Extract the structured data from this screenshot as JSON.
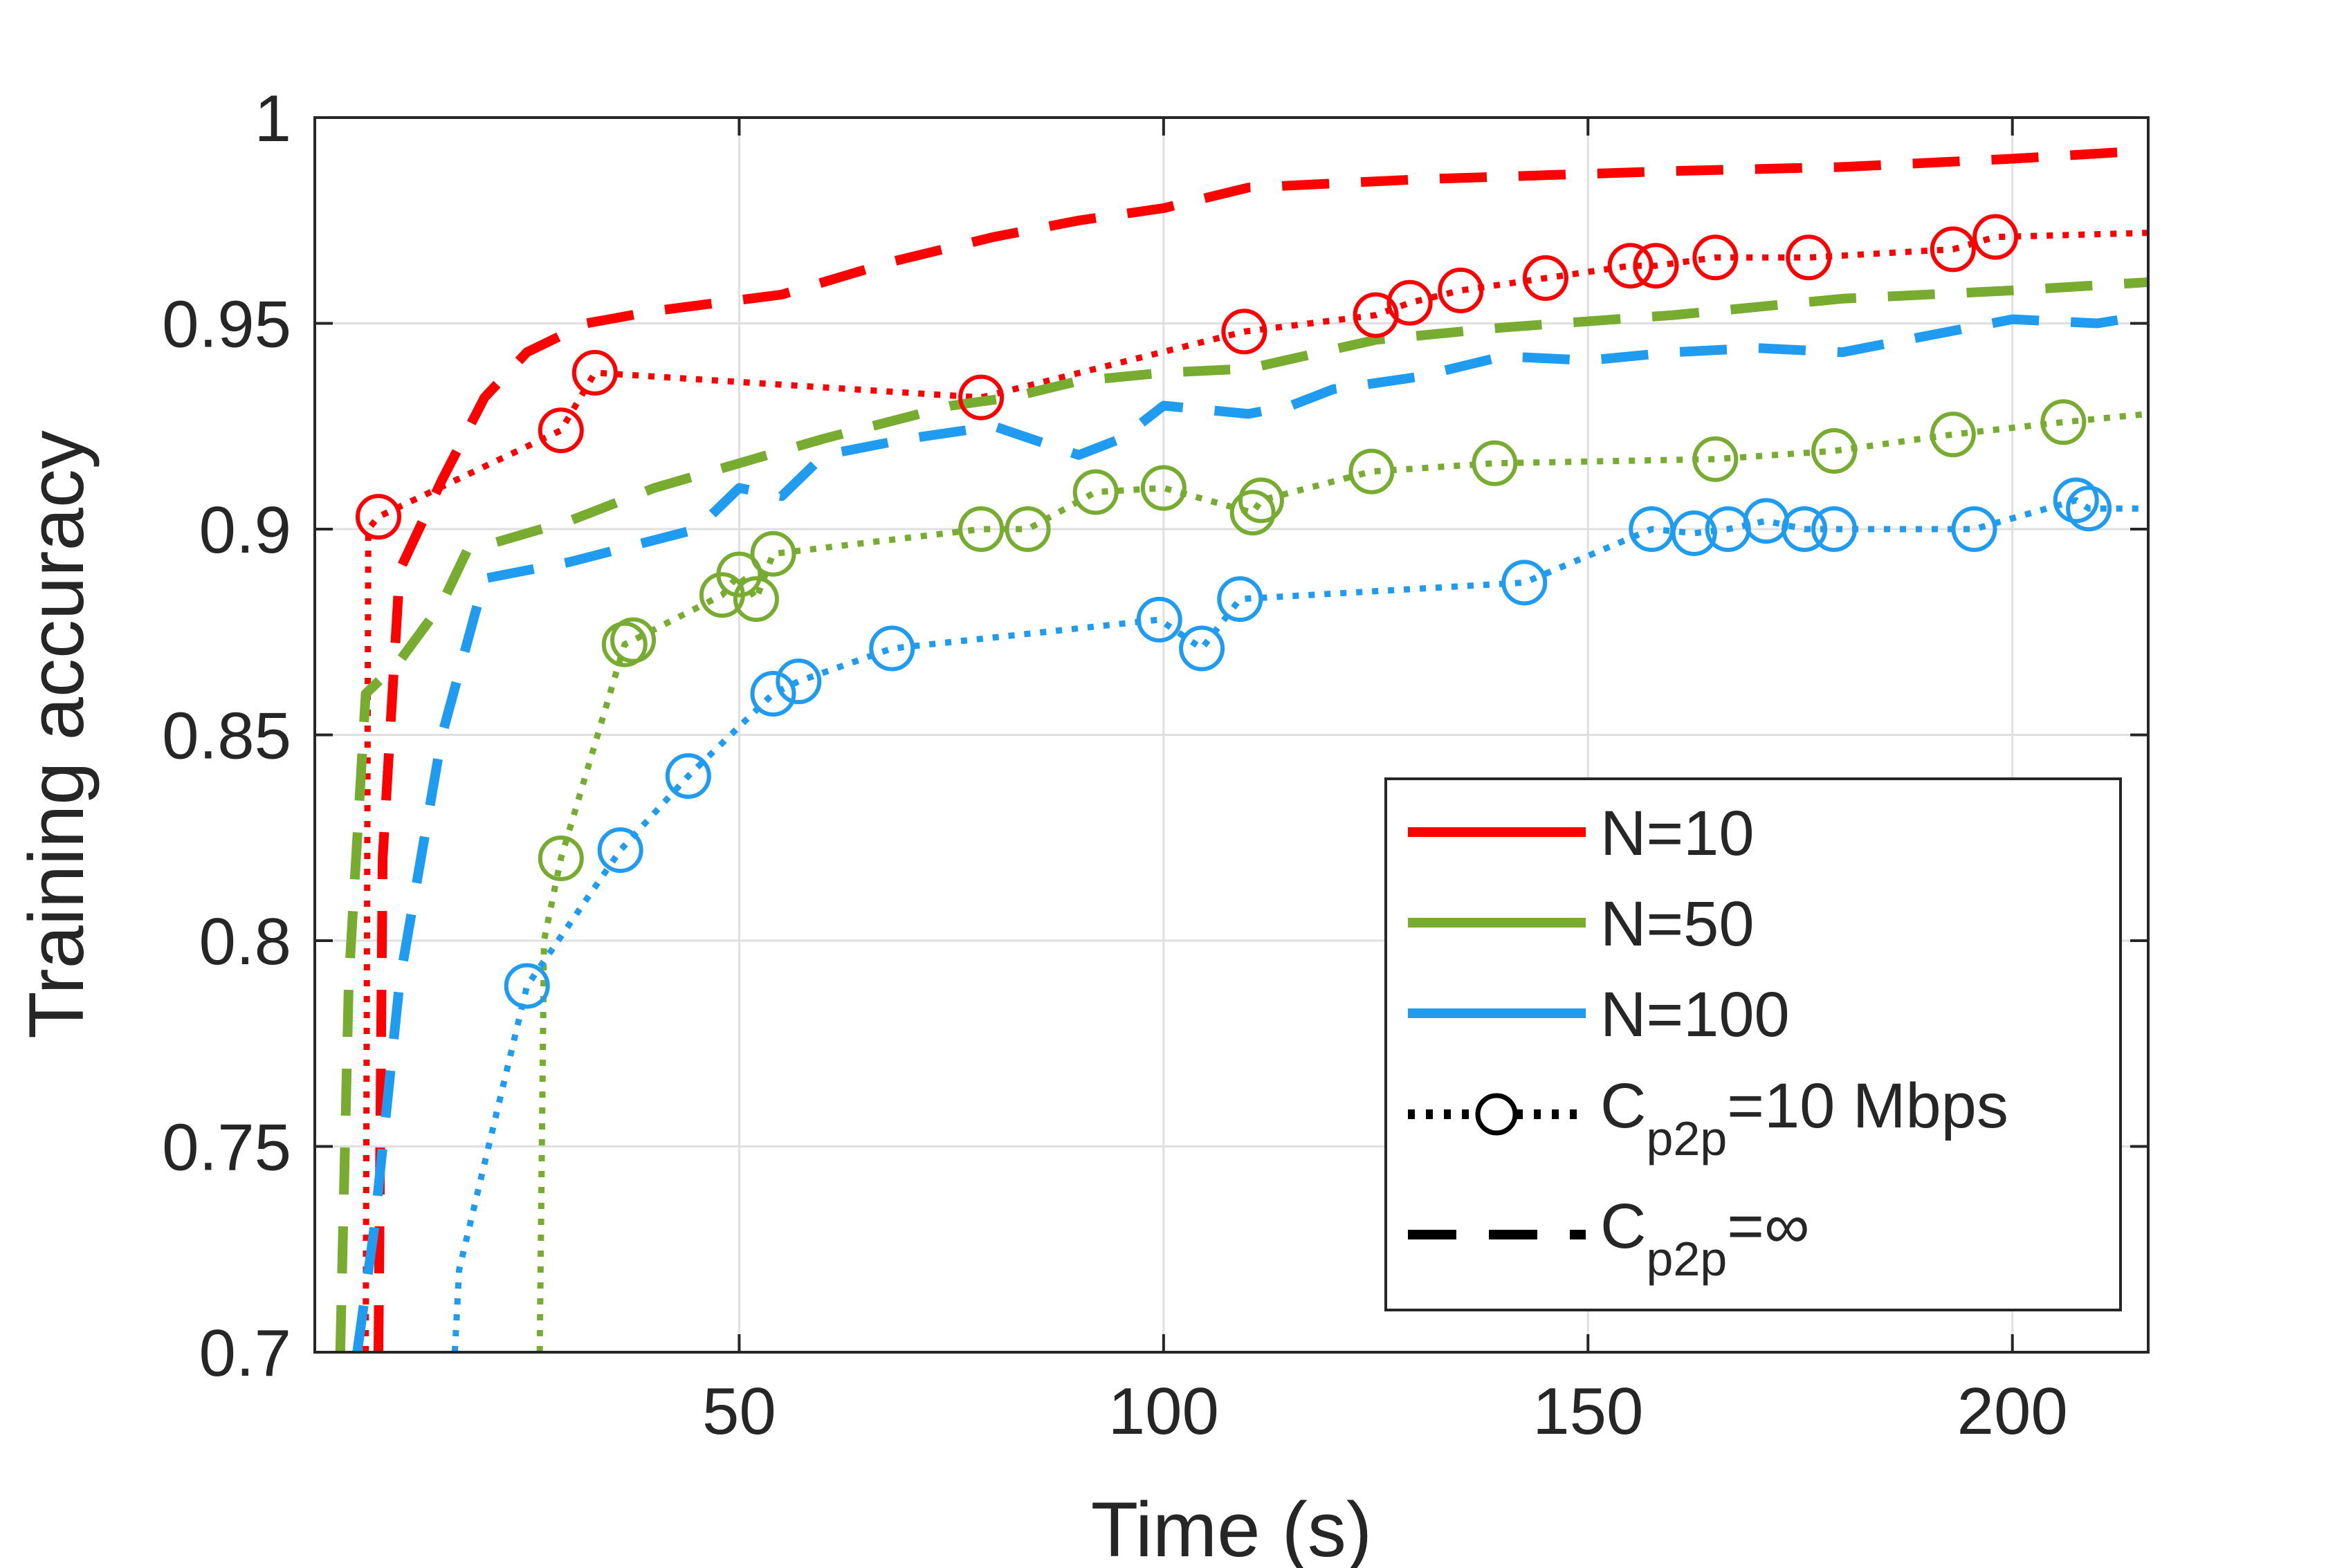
{
  "chart_data": {
    "type": "line",
    "title": "",
    "xlabel": "Time (s)",
    "ylabel": "Training accuracy",
    "xlim": [
      0,
      216
    ],
    "ylim": [
      0.7,
      1.0
    ],
    "xticks": [
      50,
      100,
      150,
      200
    ],
    "xtick_labels": [
      "50",
      "100",
      "150",
      "200"
    ],
    "yticks": [
      0.7,
      0.75,
      0.8,
      0.85,
      0.9,
      0.95,
      1.0
    ],
    "ytick_labels": [
      "0.7",
      "0.75",
      "0.8",
      "0.85",
      "0.9",
      "0.95",
      "1"
    ],
    "grid": true,
    "legend_position": "bottom-right",
    "legend": [
      {
        "label": "N=10",
        "kind": "color",
        "color": "#ff0000"
      },
      {
        "label": "N=50",
        "kind": "color",
        "color": "#77ac30"
      },
      {
        "label": "N=100",
        "kind": "color",
        "color": "#1f9bef"
      },
      {
        "label": "C",
        "sub": "p2p",
        "suffix": "=10 Mbps",
        "kind": "dotted-circle",
        "color": "#000000"
      },
      {
        "label": "C",
        "sub": "p2p",
        "suffix": "=∞",
        "kind": "dashed",
        "color": "#000000"
      }
    ],
    "series": [
      {
        "name": "N=10, Cp2p=∞",
        "color": "#ff0000",
        "style": "dashed",
        "markers": false,
        "x": [
          7.5,
          8,
          10,
          15,
          20,
          25,
          32,
          40,
          55,
          68,
          80,
          90,
          100,
          110,
          120,
          130,
          145,
          160,
          180,
          200,
          216
        ],
        "y": [
          0.7,
          0.82,
          0.89,
          0.912,
          0.932,
          0.943,
          0.95,
          0.953,
          0.957,
          0.965,
          0.971,
          0.975,
          0.978,
          0.983,
          0.984,
          0.985,
          0.986,
          0.987,
          0.988,
          0.99,
          0.992
        ]
      },
      {
        "name": "N=10, Cp2p=10 Mbps",
        "color": "#ff0000",
        "style": "dotted",
        "markers": true,
        "x": [
          6,
          6.3,
          7.5,
          29,
          33,
          78.5,
          109.5,
          125,
          129,
          135,
          145,
          155,
          158,
          165,
          176,
          193,
          198,
          216
        ],
        "y": [
          0.7,
          0.9,
          0.903,
          0.924,
          0.938,
          0.932,
          0.948,
          0.952,
          0.955,
          0.958,
          0.961,
          0.964,
          0.964,
          0.966,
          0.966,
          0.968,
          0.971,
          0.972
        ],
        "marker_x": [
          7.5,
          29,
          33,
          78.5,
          109.5,
          125,
          129,
          135,
          145,
          155,
          158,
          165,
          176,
          193,
          198
        ],
        "marker_y": [
          0.903,
          0.924,
          0.938,
          0.932,
          0.948,
          0.952,
          0.955,
          0.958,
          0.961,
          0.964,
          0.964,
          0.966,
          0.966,
          0.968,
          0.971
        ]
      },
      {
        "name": "N=50, Cp2p=∞",
        "color": "#77ac30",
        "style": "dashed",
        "markers": false,
        "x": [
          3,
          4,
          6,
          10,
          15,
          18,
          20,
          30,
          40,
          50,
          60,
          75,
          82,
          90,
          100,
          110,
          125,
          140,
          160,
          180,
          200,
          216
        ],
        "y": [
          0.7,
          0.79,
          0.86,
          0.868,
          0.882,
          0.895,
          0.896,
          0.902,
          0.91,
          0.916,
          0.922,
          0.93,
          0.932,
          0.936,
          0.938,
          0.939,
          0.946,
          0.949,
          0.952,
          0.956,
          0.958,
          0.96
        ]
      },
      {
        "name": "N=50, Cp2p=10 Mbps",
        "color": "#77ac30",
        "style": "dotted",
        "markers": true,
        "x": [
          26.5,
          27,
          29,
          36.5,
          37.5,
          48,
          50,
          52,
          54,
          78.5,
          84,
          92,
          100,
          110.5,
          111.5,
          124.5,
          139,
          165,
          179,
          193,
          206,
          216
        ],
        "y": [
          0.7,
          0.8,
          0.82,
          0.872,
          0.873,
          0.884,
          0.889,
          0.883,
          0.894,
          0.9,
          0.9,
          0.909,
          0.91,
          0.904,
          0.907,
          0.914,
          0.916,
          0.917,
          0.919,
          0.923,
          0.926,
          0.928
        ],
        "marker_x": [
          29,
          36.5,
          37.5,
          48,
          50,
          52,
          54,
          78.5,
          84,
          92,
          100,
          110.5,
          111.5,
          124.5,
          139,
          165,
          179,
          193,
          206
        ],
        "marker_y": [
          0.82,
          0.872,
          0.873,
          0.884,
          0.889,
          0.883,
          0.894,
          0.9,
          0.9,
          0.909,
          0.91,
          0.904,
          0.907,
          0.914,
          0.916,
          0.917,
          0.919,
          0.923,
          0.926
        ]
      },
      {
        "name": "N=100, Cp2p=∞",
        "color": "#1f9bef",
        "style": "dashed",
        "markers": false,
        "x": [
          5,
          7,
          10,
          15,
          20,
          30,
          45,
          50,
          55,
          60,
          70,
          80,
          90,
          95,
          100,
          110,
          115,
          120,
          130,
          140,
          150,
          160,
          170,
          180,
          190,
          200,
          210,
          216
        ],
        "y": [
          0.7,
          0.73,
          0.79,
          0.85,
          0.888,
          0.892,
          0.9,
          0.91,
          0.908,
          0.918,
          0.922,
          0.925,
          0.918,
          0.922,
          0.93,
          0.928,
          0.93,
          0.934,
          0.937,
          0.942,
          0.941,
          0.943,
          0.944,
          0.943,
          0.947,
          0.951,
          0.95,
          0.952
        ],
        "comment": "values read approximately"
      },
      {
        "name": "N=100, Cp2p=10 Mbps",
        "color": "#1f9bef",
        "style": "dotted",
        "markers": true,
        "x": [
          16.5,
          17,
          25,
          36,
          44,
          54,
          57,
          68,
          99.5,
          104.5,
          109,
          142.5,
          157.5,
          162.5,
          166.5,
          171,
          175.5,
          179,
          195.5,
          207.5,
          209,
          216
        ],
        "y": [
          0.7,
          0.72,
          0.789,
          0.822,
          0.84,
          0.86,
          0.863,
          0.871,
          0.878,
          0.871,
          0.883,
          0.887,
          0.9,
          0.899,
          0.9,
          0.902,
          0.9,
          0.9,
          0.9,
          0.907,
          0.905,
          0.905
        ],
        "marker_x": [
          25,
          36,
          44,
          54,
          57,
          68,
          99.5,
          104.5,
          109,
          142.5,
          157.5,
          162.5,
          166.5,
          171,
          175.5,
          179,
          195.5,
          207.5,
          209
        ],
        "marker_y": [
          0.789,
          0.822,
          0.84,
          0.86,
          0.863,
          0.871,
          0.878,
          0.871,
          0.883,
          0.887,
          0.9,
          0.899,
          0.9,
          0.902,
          0.9,
          0.9,
          0.9,
          0.907,
          0.905
        ]
      }
    ]
  }
}
